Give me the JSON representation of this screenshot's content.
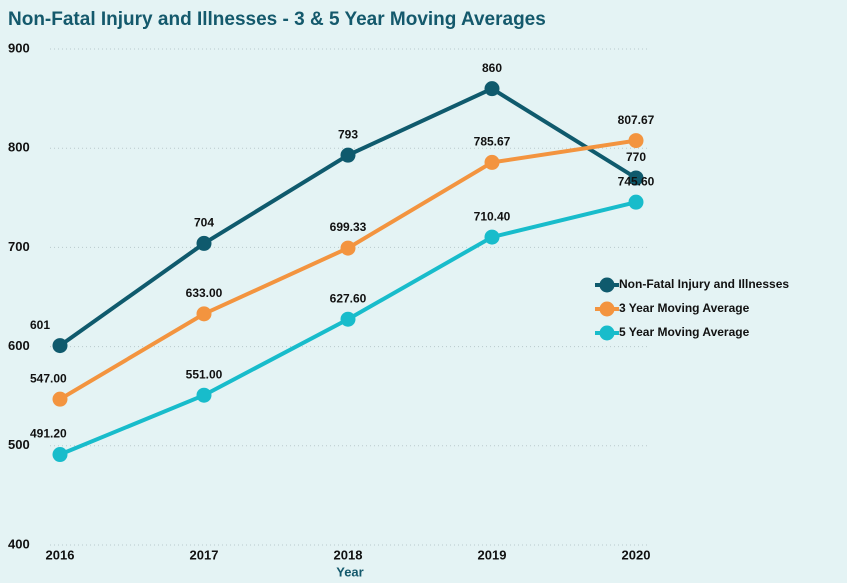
{
  "chart_data": {
    "type": "line",
    "title": "Non-Fatal Injury and Illnesses - 3 & 5 Year Moving Averages",
    "x_label": "Year",
    "categories": [
      "2016",
      "2017",
      "2018",
      "2019",
      "2020"
    ],
    "series": [
      {
        "name": "Non-Fatal Injury and Illnesses",
        "color": "#0f5a6d",
        "values": [
          601,
          704,
          793,
          860,
          770
        ]
      },
      {
        "name": "3 Year Moving Average",
        "color": "#f3943f",
        "values": [
          547,
          633,
          699.33,
          785.67,
          807.67
        ],
        "value_labels": [
          "547.00",
          "633.00",
          "699.33",
          "785.67",
          "807.67"
        ]
      },
      {
        "name": "5 Year Moving Average",
        "color": "#18bccb",
        "values": [
          491.2,
          551,
          627.6,
          710.4,
          745.6
        ],
        "value_labels": [
          "491.20",
          "551.00",
          "627.60",
          "710.40",
          "745.60"
        ]
      }
    ],
    "ylim": [
      400,
      900
    ],
    "yticks": [
      400,
      500,
      600,
      700,
      800,
      900
    ],
    "grid": true,
    "legend": "right"
  }
}
